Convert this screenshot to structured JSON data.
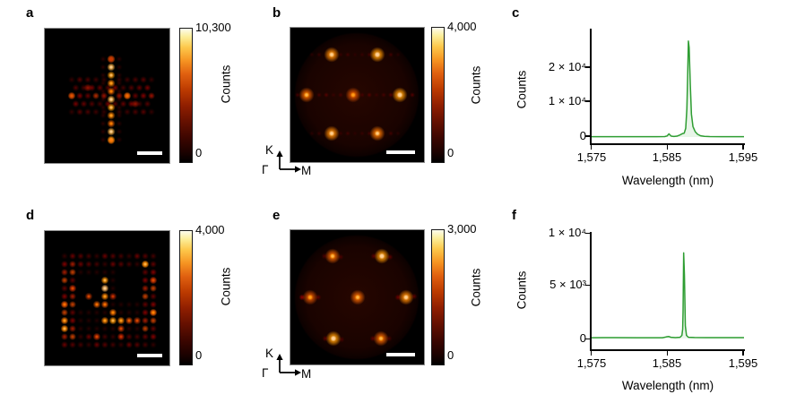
{
  "figure": {
    "background": "#ffffff",
    "accent_green": "#2e9d32",
    "panels": {
      "a": {
        "label": "a",
        "colorbar": {
          "max": "10,300",
          "min": "0",
          "title": "Counts"
        }
      },
      "b": {
        "label": "b",
        "colorbar": {
          "max": "4,000",
          "min": "0",
          "title": "Counts"
        },
        "axes": {
          "k": "K",
          "gamma": "Γ",
          "m": "M"
        }
      },
      "c": {
        "label": "c",
        "ytick_labels": [
          "2 × 10⁴",
          "1 × 10⁴",
          "0"
        ],
        "xtick_labels": [
          "1,575",
          "1,585",
          "1,595"
        ]
      },
      "d": {
        "label": "d",
        "colorbar": {
          "max": "4,000",
          "min": "0",
          "title": "Counts"
        }
      },
      "e": {
        "label": "e",
        "colorbar": {
          "max": "3,000",
          "min": "0",
          "title": "Counts"
        },
        "axes": {
          "k": "K",
          "gamma": "Γ",
          "m": "M"
        }
      },
      "f": {
        "label": "f",
        "ytick_labels": [
          "1 × 10⁴",
          "5 × 10³",
          "0"
        ],
        "xtick_labels": [
          "1,575",
          "1,585",
          "1,595"
        ]
      }
    }
  },
  "chart_data": [
    {
      "panel": "a",
      "type": "heatmap",
      "space": "real",
      "description": "Real-space emission image: bright vertical chain of lattice sites with dimmer honeycomb side blocks forming a cross shape",
      "colorbar": {
        "min": 0,
        "max": 10300,
        "label": "Counts"
      },
      "scale_bar": true,
      "image": {
        "w": 139,
        "h": 150,
        "center_column": {
          "x": 74,
          "y0": 34,
          "pitch": 9,
          "n": 11,
          "intensity": 0.92
        },
        "flank_intensity": 0.15,
        "side_blocks": {
          "rows_y": [
            57,
            66,
            75,
            84,
            93
          ],
          "left_cols_x": [
            30,
            39,
            48,
            57,
            66
          ],
          "right_cols_x": [
            83,
            92,
            101,
            110,
            119
          ],
          "row_intensities": [
            0.26,
            0.34,
            0.5,
            0.34,
            0.26
          ]
        },
        "accents": [
          [
            30,
            75,
            0.7
          ],
          [
            92,
            75,
            0.75
          ],
          [
            48,
            66,
            0.5
          ],
          [
            101,
            84,
            0.5
          ],
          [
            74,
            125,
            0.75
          ],
          [
            74,
            34,
            0.55
          ]
        ],
        "dot_radius": 4.2,
        "scalebar": {
          "x": 103,
          "y": 137,
          "w": 28,
          "h": 4
        }
      }
    },
    {
      "panel": "b",
      "type": "heatmap",
      "space": "fourier",
      "description": "Fourier-space (back-focal-plane) image: six bright spots in hexagonal arrangement plus centre spot, with faint horizontal streaks",
      "colorbar": {
        "min": 0,
        "max": 4000,
        "label": "Counts"
      },
      "brillouin_axes": [
        "K",
        "Γ",
        "M"
      ],
      "scale_bar": true,
      "image": {
        "w": 149,
        "h": 150,
        "disk": {
          "cx": 74,
          "cy": 75,
          "r": 70
        },
        "rows": [
          {
            "y": 30,
            "main": [
              [
                46,
                0.95
              ],
              [
                97,
                1.0
              ]
            ],
            "streak": {
              "x0": 24,
              "x1": 126,
              "step": 8,
              "intensity": 0.2
            }
          },
          {
            "y": 75,
            "main": [
              [
                18,
                0.85
              ],
              [
                70,
                0.8
              ],
              [
                122,
                1.0
              ]
            ],
            "streak": {
              "x0": 8,
              "x1": 141,
              "step": 8,
              "intensity": 0.26
            }
          },
          {
            "y": 118,
            "main": [
              [
                46,
                0.95
              ],
              [
                97,
                0.9
              ]
            ],
            "streak": {
              "x0": 24,
              "x1": 126,
              "step": 8,
              "intensity": 0.2
            }
          }
        ],
        "spot_radius": 6,
        "scalebar": {
          "x": 107,
          "y": 137,
          "w": 32,
          "h": 4
        }
      }
    },
    {
      "panel": "c",
      "type": "line",
      "xlabel": "Wavelength (nm)",
      "ylabel": "Counts",
      "xlim": [
        1575,
        1595
      ],
      "ylim": [
        -1790,
        30940
      ],
      "xticks": [
        1575,
        1585,
        1595
      ],
      "yticks": [
        0,
        10000,
        20000
      ],
      "grid": false,
      "legend": false,
      "peak": {
        "wavelength_nm": 1587.7,
        "counts": 27400
      },
      "series": [
        {
          "name": "emission spectrum",
          "color": "#2e9d32",
          "points": [
            [
              1575,
              100
            ],
            [
              1578,
              110
            ],
            [
              1581,
              100
            ],
            [
              1583.5,
              100
            ],
            [
              1584.6,
              120
            ],
            [
              1584.9,
              300
            ],
            [
              1585.15,
              900
            ],
            [
              1585.45,
              250
            ],
            [
              1585.8,
              150
            ],
            [
              1586.2,
              250
            ],
            [
              1586.6,
              600
            ],
            [
              1586.9,
              950
            ],
            [
              1587.15,
              1100
            ],
            [
              1587.35,
              2500
            ],
            [
              1587.5,
              8000
            ],
            [
              1587.6,
              17000
            ],
            [
              1587.7,
              27400
            ],
            [
              1587.8,
              25500
            ],
            [
              1587.95,
              15000
            ],
            [
              1588.1,
              6500
            ],
            [
              1588.3,
              3000
            ],
            [
              1588.6,
              1500
            ],
            [
              1588.9,
              800
            ],
            [
              1589.3,
              350
            ],
            [
              1589.8,
              180
            ],
            [
              1590.5,
              120
            ],
            [
              1592,
              100
            ],
            [
              1595,
              100
            ]
          ]
        }
      ]
    },
    {
      "panel": "d",
      "type": "heatmap",
      "space": "real",
      "description": "Real-space emission image: square ring of lattice sites with bright edge columns, central bright chain and scattered bright sites",
      "colorbar": {
        "min": 0,
        "max": 4000,
        "label": "Counts"
      },
      "scale_bar": true,
      "image": {
        "w": 139,
        "h": 150,
        "grid": {
          "x0": 22,
          "y0": 28,
          "cols": 12,
          "rows": 12,
          "pitch": 9,
          "stagger": 0
        },
        "ring_intensity": 0.3,
        "edge_col_intensity": 0.55,
        "interior_intensity": 0.13,
        "voids": [
          {
            "c0": 2,
            "c1": 4,
            "r0": 3,
            "r1": 6
          },
          {
            "c0": 7,
            "c1": 9,
            "r0": 2,
            "r1": 5
          }
        ],
        "bright": [
          [
            5,
            3,
            0.85
          ],
          [
            5,
            4,
            0.95
          ],
          [
            5,
            5,
            0.8
          ],
          [
            6,
            5,
            0.55
          ],
          [
            5,
            6,
            0.7
          ],
          [
            4,
            6,
            0.7
          ],
          [
            3,
            5,
            0.6
          ],
          [
            6,
            7,
            0.75
          ],
          [
            5,
            8,
            0.8
          ],
          [
            6,
            8,
            0.85
          ],
          [
            7,
            8,
            0.8
          ],
          [
            8,
            8,
            0.65
          ],
          [
            9,
            8,
            0.6
          ],
          [
            7,
            9,
            0.6
          ],
          [
            10,
            1,
            0.85
          ],
          [
            11,
            7,
            0.75
          ],
          [
            0,
            8,
            0.8
          ],
          [
            0,
            9,
            0.85
          ],
          [
            0,
            6,
            0.7
          ],
          [
            11,
            3,
            0.6
          ],
          [
            1,
            4,
            0.6
          ],
          [
            4,
            10,
            0.6
          ],
          [
            7,
            10,
            0.55
          ]
        ],
        "dot_radius": 4.2,
        "scalebar": {
          "x": 103,
          "y": 137,
          "w": 28,
          "h": 4
        }
      }
    },
    {
      "panel": "e",
      "type": "heatmap",
      "space": "fourier",
      "description": "Fourier-space (back-focal-plane) image: six hexagonal spots with dim companions plus centre spot",
      "colorbar": {
        "min": 0,
        "max": 3000,
        "label": "Counts"
      },
      "brillouin_axes": [
        "K",
        "Γ",
        "M"
      ],
      "scale_bar": true,
      "image": {
        "w": 149,
        "h": 150,
        "disk": {
          "cx": 74,
          "cy": 75,
          "r": 70
        },
        "spots": [
          [
            47,
            29,
            0.85
          ],
          [
            102,
            29,
            1.0
          ],
          [
            22,
            75,
            0.8
          ],
          [
            75,
            75,
            0.85
          ],
          [
            129,
            75,
            0.95
          ],
          [
            48,
            121,
            1.0
          ],
          [
            101,
            121,
            0.85
          ]
        ],
        "companions": [
          [
            13,
            75,
            0.45
          ],
          [
            31,
            75,
            0.3
          ],
          [
            120,
            75,
            0.35
          ],
          [
            138,
            74,
            0.3
          ],
          [
            38,
            29,
            0.25
          ],
          [
            56,
            30,
            0.25
          ],
          [
            93,
            29,
            0.3
          ],
          [
            111,
            30,
            0.3
          ],
          [
            39,
            121,
            0.3
          ],
          [
            57,
            122,
            0.25
          ],
          [
            92,
            121,
            0.3
          ],
          [
            110,
            121,
            0.25
          ]
        ],
        "spot_radius": 6,
        "scalebar": {
          "x": 107,
          "y": 137,
          "w": 32,
          "h": 4
        }
      }
    },
    {
      "panel": "f",
      "type": "line",
      "xlabel": "Wavelength (nm)",
      "ylabel": "Counts",
      "xlim": [
        1575,
        1595
      ],
      "ylim": [
        -1096,
        10000
      ],
      "xticks": [
        1575,
        1585,
        1595
      ],
      "yticks": [
        0,
        5000,
        10000
      ],
      "grid": false,
      "legend": false,
      "peak": {
        "wavelength_nm": 1587.1,
        "counts": 8100
      },
      "series": [
        {
          "name": "emission spectrum",
          "color": "#2e9d32",
          "points": [
            [
              1575,
              80
            ],
            [
              1578,
              90
            ],
            [
              1581,
              80
            ],
            [
              1584.3,
              80
            ],
            [
              1584.8,
              160
            ],
            [
              1585.1,
              200
            ],
            [
              1585.4,
              120
            ],
            [
              1586,
              90
            ],
            [
              1586.6,
              120
            ],
            [
              1586.85,
              300
            ],
            [
              1586.95,
              900
            ],
            [
              1587.0,
              2500
            ],
            [
              1587.08,
              8100
            ],
            [
              1587.18,
              6000
            ],
            [
              1587.3,
              1200
            ],
            [
              1587.45,
              300
            ],
            [
              1587.7,
              120
            ],
            [
              1588.5,
              100
            ],
            [
              1590,
              90
            ],
            [
              1592.5,
              95
            ],
            [
              1595,
              85
            ]
          ]
        }
      ]
    }
  ]
}
